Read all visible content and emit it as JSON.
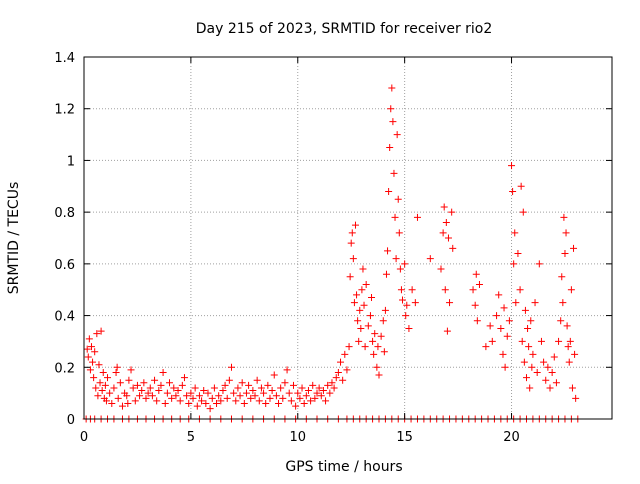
{
  "chart_data": {
    "type": "scatter",
    "title": "Day 215 of 2023, SRMTID for receiver rio2",
    "xlabel": "GPS time / hours",
    "ylabel": "SRMTID / TECUs",
    "xlim": [
      0,
      24.7
    ],
    "ylim": [
      0,
      1.4
    ],
    "xticks": [
      0,
      5,
      10,
      15,
      20
    ],
    "yticks": [
      0,
      0.2,
      0.4,
      0.6,
      0.8,
      1,
      1.2,
      1.4
    ],
    "xtick_labels": [
      "0",
      "5",
      "10",
      "15",
      "20"
    ],
    "ytick_labels": [
      "0",
      "0.2",
      "0.4",
      "0.6",
      "0.8",
      "1",
      "1.2",
      "1.4"
    ],
    "grid": true,
    "marker": "+",
    "color": "#ff0000",
    "series": [
      {
        "name": "rio2",
        "points": [
          [
            0.15,
            0.27
          ],
          [
            0.2,
            0.24
          ],
          [
            0.25,
            0.31
          ],
          [
            0.3,
            0.19
          ],
          [
            0.35,
            0.28
          ],
          [
            0.4,
            0.22
          ],
          [
            0.45,
            0.16
          ],
          [
            0.5,
            0.26
          ],
          [
            0.55,
            0.12
          ],
          [
            0.6,
            0.33
          ],
          [
            0.65,
            0.09
          ],
          [
            0.7,
            0.21
          ],
          [
            0.75,
            0.14
          ],
          [
            0.8,
            0.34
          ],
          [
            0.85,
            0.11
          ],
          [
            0.9,
            0.18
          ],
          [
            0.95,
            0.08
          ],
          [
            1.0,
            0.13
          ],
          [
            1.05,
            0.07
          ],
          [
            1.1,
            0.16
          ],
          [
            1.2,
            0.1
          ],
          [
            1.3,
            0.06
          ],
          [
            1.4,
            0.12
          ],
          [
            1.5,
            0.18
          ],
          [
            1.55,
            0.2
          ],
          [
            1.6,
            0.08
          ],
          [
            1.7,
            0.14
          ],
          [
            1.8,
            0.05
          ],
          [
            1.9,
            0.1
          ],
          [
            2.0,
            0.09
          ],
          [
            2.05,
            0.06
          ],
          [
            2.1,
            0.15
          ],
          [
            2.2,
            0.19
          ],
          [
            2.3,
            0.12
          ],
          [
            2.4,
            0.07
          ],
          [
            2.5,
            0.13
          ],
          [
            2.6,
            0.09
          ],
          [
            2.7,
            0.11
          ],
          [
            2.8,
            0.14
          ],
          [
            2.9,
            0.08
          ],
          [
            3.0,
            0.1
          ],
          [
            3.1,
            0.12
          ],
          [
            3.2,
            0.09
          ],
          [
            3.3,
            0.15
          ],
          [
            3.4,
            0.07
          ],
          [
            3.5,
            0.11
          ],
          [
            3.6,
            0.13
          ],
          [
            3.7,
            0.18
          ],
          [
            3.8,
            0.06
          ],
          [
            3.9,
            0.1
          ],
          [
            4.0,
            0.14
          ],
          [
            4.1,
            0.08
          ],
          [
            4.2,
            0.12
          ],
          [
            4.3,
            0.09
          ],
          [
            4.4,
            0.11
          ],
          [
            4.5,
            0.07
          ],
          [
            4.6,
            0.13
          ],
          [
            4.7,
            0.16
          ],
          [
            4.8,
            0.09
          ],
          [
            4.9,
            0.06
          ],
          [
            5.0,
            0.1
          ],
          [
            5.1,
            0.08
          ],
          [
            5.2,
            0.12
          ],
          [
            5.3,
            0.05
          ],
          [
            5.4,
            0.09
          ],
          [
            5.5,
            0.07
          ],
          [
            5.6,
            0.11
          ],
          [
            5.7,
            0.06
          ],
          [
            5.8,
            0.1
          ],
          [
            5.9,
            0.04
          ],
          [
            6.0,
            0.08
          ],
          [
            6.1,
            0.12
          ],
          [
            6.2,
            0.06
          ],
          [
            6.3,
            0.09
          ],
          [
            6.4,
            0.07
          ],
          [
            6.5,
            0.11
          ],
          [
            6.6,
            0.13
          ],
          [
            6.7,
            0.08
          ],
          [
            6.8,
            0.15
          ],
          [
            6.9,
            0.2
          ],
          [
            7.0,
            0.1
          ],
          [
            7.1,
            0.07
          ],
          [
            7.2,
            0.12
          ],
          [
            7.3,
            0.09
          ],
          [
            7.4,
            0.14
          ],
          [
            7.5,
            0.06
          ],
          [
            7.6,
            0.1
          ],
          [
            7.7,
            0.13
          ],
          [
            7.8,
            0.08
          ],
          [
            7.9,
            0.11
          ],
          [
            8.0,
            0.09
          ],
          [
            8.1,
            0.15
          ],
          [
            8.2,
            0.07
          ],
          [
            8.3,
            0.12
          ],
          [
            8.4,
            0.1
          ],
          [
            8.5,
            0.06
          ],
          [
            8.6,
            0.13
          ],
          [
            8.7,
            0.08
          ],
          [
            8.8,
            0.11
          ],
          [
            8.9,
            0.17
          ],
          [
            9.0,
            0.09
          ],
          [
            9.1,
            0.06
          ],
          [
            9.2,
            0.12
          ],
          [
            9.3,
            0.08
          ],
          [
            9.4,
            0.14
          ],
          [
            9.5,
            0.19
          ],
          [
            9.6,
            0.1
          ],
          [
            9.7,
            0.07
          ],
          [
            9.8,
            0.13
          ],
          [
            9.9,
            0.05
          ],
          [
            10.0,
            0.1
          ],
          [
            10.1,
            0.08
          ],
          [
            10.2,
            0.12
          ],
          [
            10.3,
            0.06
          ],
          [
            10.4,
            0.09
          ],
          [
            10.5,
            0.11
          ],
          [
            10.6,
            0.07
          ],
          [
            10.7,
            0.13
          ],
          [
            10.8,
            0.08
          ],
          [
            10.9,
            0.1
          ],
          [
            11.0,
            0.12
          ],
          [
            11.1,
            0.09
          ],
          [
            11.2,
            0.11
          ],
          [
            11.3,
            0.07
          ],
          [
            11.4,
            0.13
          ],
          [
            11.5,
            0.1
          ],
          [
            11.6,
            0.14
          ],
          [
            11.7,
            0.12
          ],
          [
            11.8,
            0.16
          ],
          [
            11.9,
            0.18
          ],
          [
            12.0,
            0.22
          ],
          [
            12.1,
            0.15
          ],
          [
            12.2,
            0.25
          ],
          [
            12.3,
            0.19
          ],
          [
            12.4,
            0.28
          ],
          [
            12.45,
            0.55
          ],
          [
            12.5,
            0.68
          ],
          [
            12.55,
            0.72
          ],
          [
            12.6,
            0.62
          ],
          [
            12.65,
            0.45
          ],
          [
            12.7,
            0.75
          ],
          [
            12.75,
            0.48
          ],
          [
            12.8,
            0.38
          ],
          [
            12.85,
            0.3
          ],
          [
            12.9,
            0.42
          ],
          [
            12.95,
            0.35
          ],
          [
            13.0,
            0.5
          ],
          [
            13.05,
            0.58
          ],
          [
            13.1,
            0.44
          ],
          [
            13.15,
            0.28
          ],
          [
            13.2,
            0.52
          ],
          [
            13.3,
            0.36
          ],
          [
            13.4,
            0.4
          ],
          [
            13.45,
            0.47
          ],
          [
            13.5,
            0.3
          ],
          [
            13.55,
            0.25
          ],
          [
            13.6,
            0.33
          ],
          [
            13.7,
            0.2
          ],
          [
            13.75,
            0.28
          ],
          [
            13.8,
            0.17
          ],
          [
            13.9,
            0.32
          ],
          [
            14.0,
            0.38
          ],
          [
            14.05,
            0.26
          ],
          [
            14.1,
            0.42
          ],
          [
            14.15,
            0.56
          ],
          [
            14.2,
            0.65
          ],
          [
            14.25,
            0.88
          ],
          [
            14.3,
            1.05
          ],
          [
            14.35,
            1.2
          ],
          [
            14.4,
            1.28
          ],
          [
            14.45,
            1.15
          ],
          [
            14.5,
            0.95
          ],
          [
            14.55,
            0.78
          ],
          [
            14.6,
            0.62
          ],
          [
            14.65,
            1.1
          ],
          [
            14.7,
            0.85
          ],
          [
            14.75,
            0.72
          ],
          [
            14.8,
            0.58
          ],
          [
            14.85,
            0.5
          ],
          [
            14.9,
            0.46
          ],
          [
            15.0,
            0.6
          ],
          [
            15.05,
            0.4
          ],
          [
            15.1,
            0.44
          ],
          [
            15.2,
            0.35
          ],
          [
            15.35,
            0.5
          ],
          [
            15.5,
            0.45
          ],
          [
            15.6,
            0.78
          ],
          [
            16.2,
            0.62
          ],
          [
            16.7,
            0.58
          ],
          [
            16.8,
            0.72
          ],
          [
            16.85,
            0.82
          ],
          [
            16.9,
            0.5
          ],
          [
            16.95,
            0.76
          ],
          [
            17.0,
            0.34
          ],
          [
            17.05,
            0.7
          ],
          [
            17.1,
            0.45
          ],
          [
            17.2,
            0.8
          ],
          [
            17.25,
            0.66
          ],
          [
            18.2,
            0.5
          ],
          [
            18.3,
            0.44
          ],
          [
            18.35,
            0.56
          ],
          [
            18.4,
            0.38
          ],
          [
            18.5,
            0.52
          ],
          [
            18.8,
            0.28
          ],
          [
            19.0,
            0.36
          ],
          [
            19.1,
            0.3
          ],
          [
            19.3,
            0.4
          ],
          [
            19.4,
            0.48
          ],
          [
            19.5,
            0.35
          ],
          [
            19.6,
            0.25
          ],
          [
            19.65,
            0.43
          ],
          [
            19.7,
            0.2
          ],
          [
            19.8,
            0.32
          ],
          [
            19.9,
            0.38
          ],
          [
            20.0,
            0.98
          ],
          [
            20.05,
            0.88
          ],
          [
            20.1,
            0.6
          ],
          [
            20.15,
            0.72
          ],
          [
            20.2,
            0.45
          ],
          [
            20.3,
            0.64
          ],
          [
            20.4,
            0.5
          ],
          [
            20.45,
            0.9
          ],
          [
            20.5,
            0.3
          ],
          [
            20.55,
            0.8
          ],
          [
            20.6,
            0.22
          ],
          [
            20.65,
            0.42
          ],
          [
            20.7,
            0.16
          ],
          [
            20.75,
            0.35
          ],
          [
            20.8,
            0.28
          ],
          [
            20.85,
            0.12
          ],
          [
            20.9,
            0.38
          ],
          [
            20.95,
            0.2
          ],
          [
            21.0,
            0.25
          ],
          [
            21.1,
            0.45
          ],
          [
            21.2,
            0.18
          ],
          [
            21.3,
            0.6
          ],
          [
            21.4,
            0.3
          ],
          [
            21.5,
            0.22
          ],
          [
            21.6,
            0.15
          ],
          [
            21.7,
            0.2
          ],
          [
            21.8,
            0.12
          ],
          [
            21.9,
            0.18
          ],
          [
            22.0,
            0.24
          ],
          [
            22.1,
            0.14
          ],
          [
            22.2,
            0.3
          ],
          [
            22.3,
            0.38
          ],
          [
            22.35,
            0.55
          ],
          [
            22.4,
            0.45
          ],
          [
            22.45,
            0.78
          ],
          [
            22.5,
            0.64
          ],
          [
            22.55,
            0.72
          ],
          [
            22.6,
            0.36
          ],
          [
            22.65,
            0.28
          ],
          [
            22.7,
            0.22
          ],
          [
            22.75,
            0.3
          ],
          [
            22.8,
            0.5
          ],
          [
            22.85,
            0.12
          ],
          [
            22.9,
            0.66
          ],
          [
            22.95,
            0.25
          ],
          [
            23.0,
            0.08
          ]
        ],
        "zero_points_x": [
          0.1,
          0.3,
          0.5,
          0.8,
          1.1,
          1.4,
          1.8,
          2.1,
          2.5,
          2.9,
          3.3,
          3.7,
          4.1,
          4.5,
          4.9,
          5.4,
          5.9,
          6.4,
          6.9,
          7.4,
          7.9,
          8.4,
          8.9,
          9.4,
          9.9,
          10.4,
          10.9,
          11.4,
          11.9,
          12.3,
          12.6,
          12.9,
          13.2,
          13.5,
          13.8,
          14.1,
          14.4,
          14.7,
          15.0,
          15.3,
          15.6,
          15.9,
          16.2,
          16.5,
          16.8,
          17.1,
          17.4,
          17.7,
          18.0,
          18.3,
          18.6,
          18.9,
          19.2,
          19.5,
          19.8,
          20.1,
          20.4,
          20.7,
          21.0,
          21.3,
          21.6,
          21.9,
          22.2,
          22.5,
          22.8,
          23.1
        ]
      }
    ]
  }
}
